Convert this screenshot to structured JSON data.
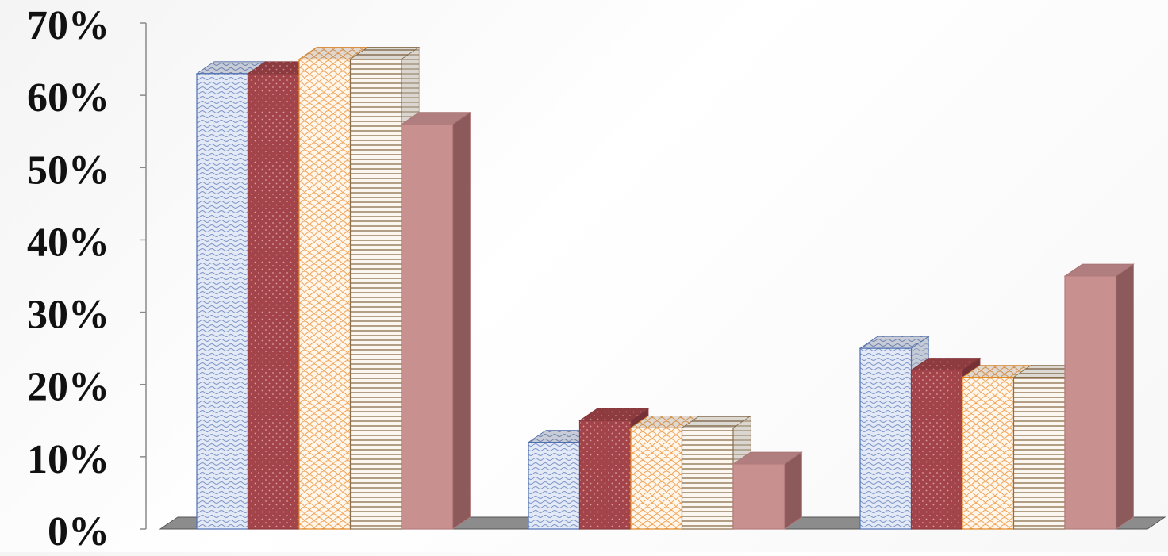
{
  "chart_data": {
    "type": "bar",
    "style": "3d clustered column",
    "title": "",
    "xlabel": "",
    "ylabel": "",
    "ylim": [
      0,
      0.7
    ],
    "yticks": [
      "0%",
      "10%",
      "20%",
      "30%",
      "40%",
      "50%",
      "60%",
      "70%"
    ],
    "grid": false,
    "legend": "none",
    "categories": [
      "",
      "",
      ""
    ],
    "series": [
      {
        "color": "#4f6fb0",
        "fill": "#e3e9f5",
        "pattern": "waves",
        "values": [
          0.63,
          0.12,
          0.25
        ]
      },
      {
        "color": "#8b3a3e",
        "fill": "#a24449",
        "pattern": "dots",
        "values": [
          0.63,
          0.15,
          0.22
        ]
      },
      {
        "color": "#e08a2a",
        "fill": "#fde9d4",
        "pattern": "scales",
        "values": [
          0.65,
          0.14,
          0.21
        ]
      },
      {
        "color": "#8b6e4a",
        "fill": "#faf4ec",
        "pattern": "horizontal-lines",
        "values": [
          0.65,
          0.14,
          0.21
        ]
      },
      {
        "color": "#b47c7c",
        "fill": "#c99090",
        "pattern": "solid",
        "values": [
          0.56,
          0.09,
          0.35
        ]
      }
    ]
  }
}
